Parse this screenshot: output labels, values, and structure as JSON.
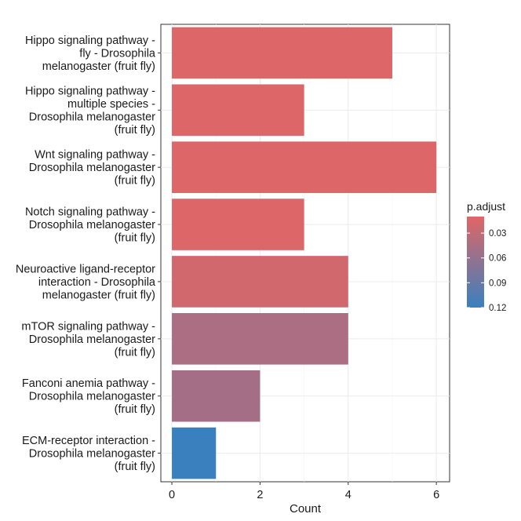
{
  "chart_data": {
    "type": "bar",
    "orientation": "horizontal",
    "categories": [
      [
        "Hippo signaling pathway -",
        "fly - Drosophila",
        "melanogaster (fruit fly)"
      ],
      [
        "Hippo signaling pathway -",
        "multiple species -",
        "Drosophila melanogaster",
        "(fruit fly)"
      ],
      [
        "Wnt signaling pathway -",
        "Drosophila melanogaster",
        "(fruit fly)"
      ],
      [
        "Notch signaling pathway -",
        "Drosophila melanogaster",
        "(fruit fly)"
      ],
      [
        "Neuroactive ligand-receptor",
        "interaction - Drosophila",
        "melanogaster (fruit fly)"
      ],
      [
        "mTOR signaling pathway -",
        "Drosophila melanogaster",
        "(fruit fly)"
      ],
      [
        "Fanconi anemia pathway -",
        "Drosophila melanogaster",
        "(fruit fly)"
      ],
      [
        "ECM-receptor interaction -",
        "Drosophila melanogaster",
        "(fruit fly)"
      ]
    ],
    "values": [
      5,
      3,
      6,
      3,
      4,
      4,
      2,
      1
    ],
    "p_adjust": [
      0.012,
      0.012,
      0.012,
      0.012,
      0.02,
      0.045,
      0.05,
      0.12
    ],
    "xlabel": "Count",
    "ylabel": "",
    "xlim": [
      -0.25,
      6.3
    ],
    "xticks": [
      "0",
      "2",
      "4",
      "6"
    ],
    "xtick_values": [
      0,
      2,
      4,
      6
    ],
    "grid": true,
    "legend": {
      "title": "p.adjust",
      "placement": "right",
      "ticks": [
        "0.03",
        "0.06",
        "0.09",
        "0.12"
      ],
      "tick_values": [
        0.03,
        0.06,
        0.09,
        0.12
      ],
      "range": [
        0.01,
        0.12
      ],
      "color_low": "#E06666",
      "color_high": "#3A80BF"
    }
  }
}
